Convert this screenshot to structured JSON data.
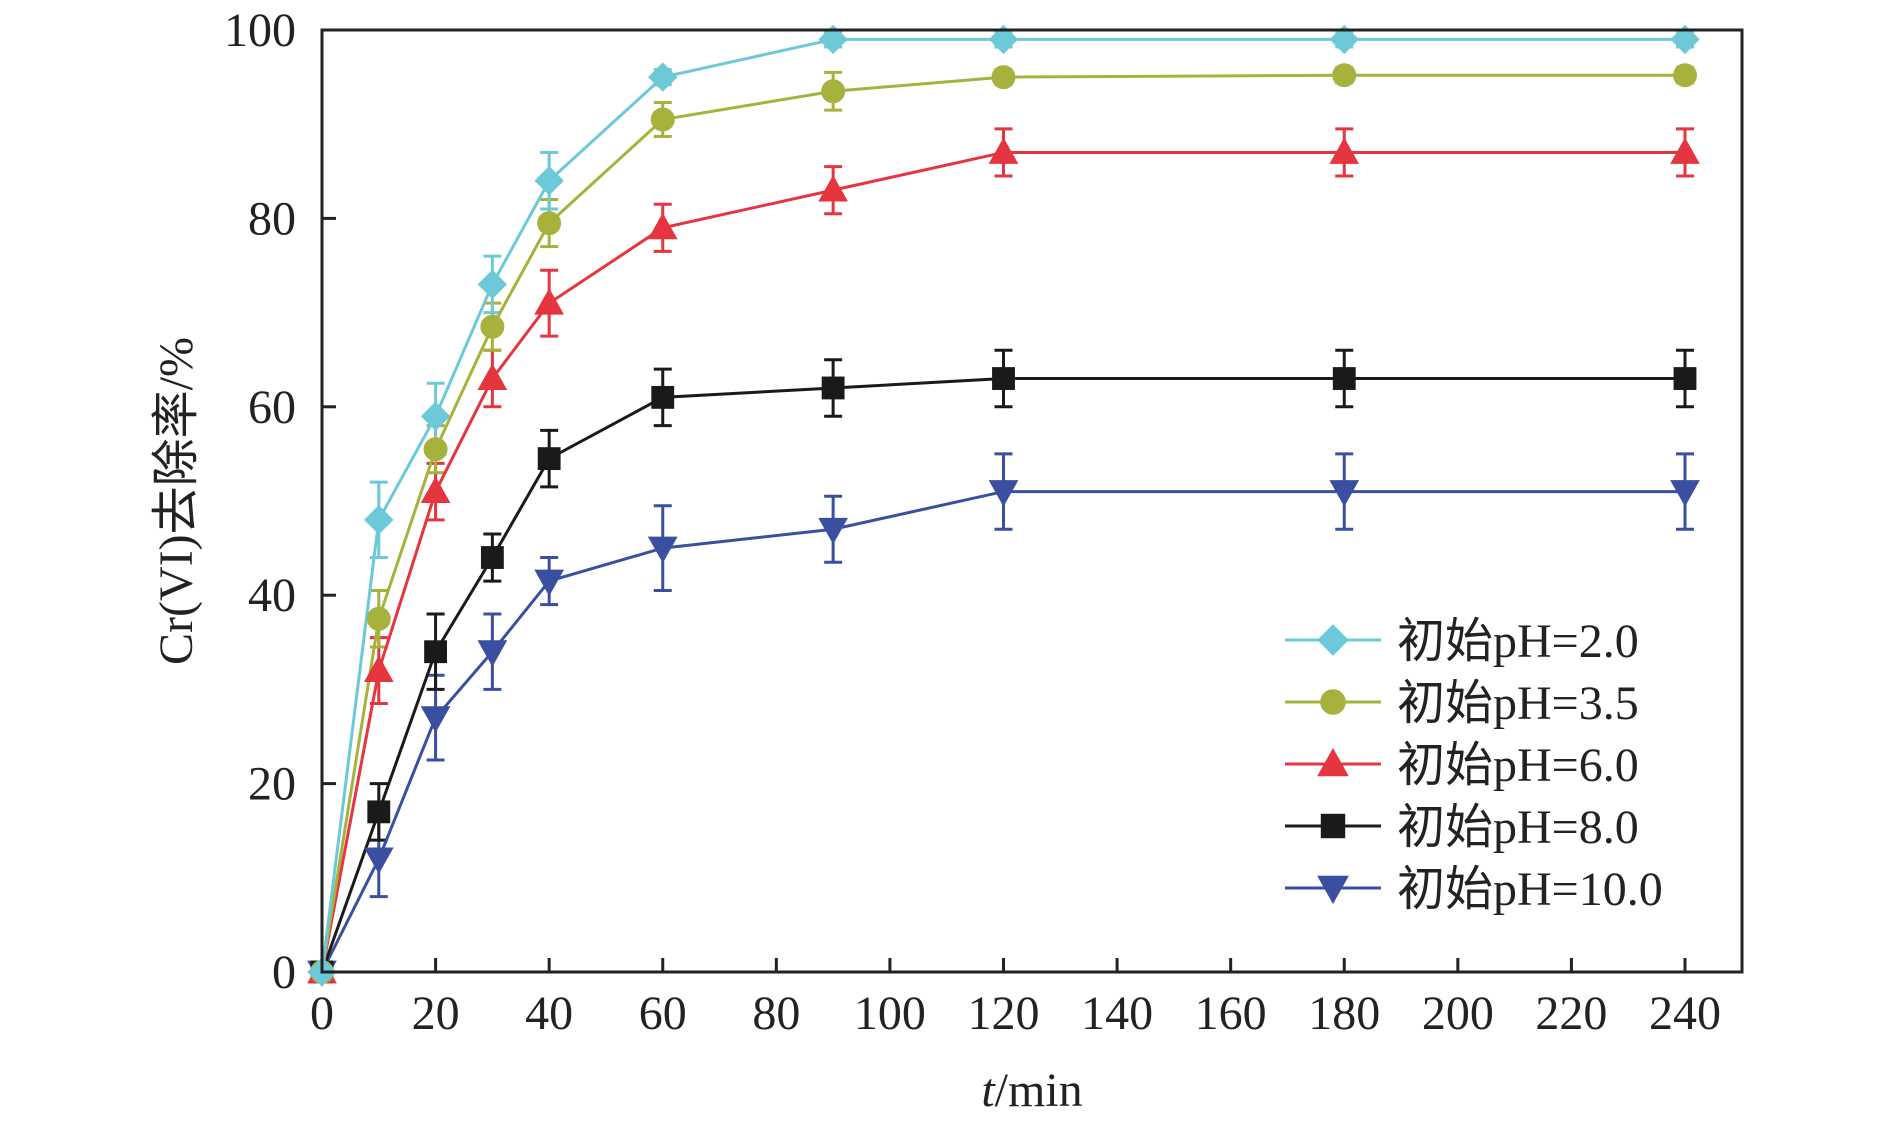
{
  "chart_data": {
    "type": "line",
    "x": [
      0,
      10,
      20,
      30,
      40,
      60,
      90,
      120,
      180,
      240
    ],
    "xlim": [
      0,
      250
    ],
    "ylim": [
      0,
      100
    ],
    "xticks": [
      0,
      20,
      40,
      60,
      80,
      100,
      120,
      140,
      160,
      180,
      200,
      220,
      240
    ],
    "yticks": [
      0,
      20,
      40,
      60,
      80,
      100
    ],
    "xlabel": {
      "italic": "t",
      "rest": "/min"
    },
    "ylabel": "Cr(VI)去除率/%",
    "title": "",
    "grid": false,
    "legend_position": "lower-right",
    "series": [
      {
        "name": "初始pH=2.0",
        "color": "#6cc9d8",
        "marker": "diamond",
        "values": [
          0,
          48,
          59,
          73,
          84,
          95,
          99,
          99,
          99,
          99
        ],
        "errors": [
          0.8,
          4,
          3.5,
          3,
          3,
          0.8,
          0.8,
          0.8,
          0.8,
          0.8
        ]
      },
      {
        "name": "初始pH=3.5",
        "color": "#a6b23c",
        "marker": "circle",
        "values": [
          0,
          37.5,
          55.5,
          68.5,
          79.5,
          90.5,
          93.5,
          95,
          95.2,
          95.2
        ],
        "errors": [
          0.8,
          3,
          2.5,
          2.5,
          2.5,
          1.8,
          2,
          0.8,
          0.8,
          0.8
        ]
      },
      {
        "name": "初始pH=6.0",
        "color": "#e5353f",
        "marker": "triangle-up",
        "values": [
          0,
          32,
          51,
          63,
          71,
          79,
          83,
          87,
          87,
          87
        ],
        "errors": [
          0.8,
          3.5,
          3,
          3,
          3.5,
          2.5,
          2.5,
          2.5,
          2.5,
          2.5
        ]
      },
      {
        "name": "初始pH=8.0",
        "color": "#1a1a1a",
        "marker": "square",
        "values": [
          0,
          17,
          34,
          44,
          54.5,
          61,
          62,
          63,
          63,
          63
        ],
        "errors": [
          0.8,
          3,
          4,
          2.5,
          3,
          3,
          3,
          3,
          3,
          3
        ]
      },
      {
        "name": "初始pH=10.0",
        "color": "#3a4fa0",
        "marker": "triangle-down",
        "values": [
          0,
          12,
          27,
          34,
          41.5,
          45,
          47,
          51,
          51,
          51
        ],
        "errors": [
          0.8,
          4,
          4.5,
          4,
          2.5,
          4.5,
          3.5,
          4,
          4,
          4
        ]
      }
    ]
  }
}
